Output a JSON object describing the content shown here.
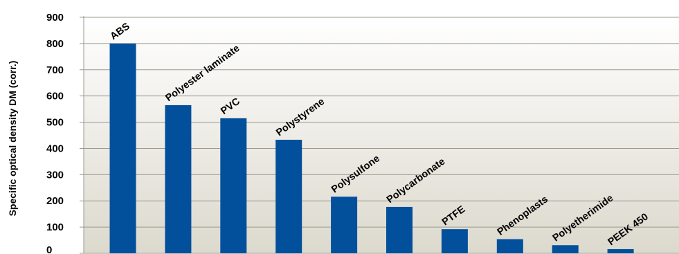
{
  "chart_data": {
    "type": "bar",
    "title": "",
    "xlabel": "",
    "ylabel": "Specific optical density DM (corr.)",
    "categories": [
      "ABS",
      "Polyester laminate",
      "PVC",
      "Polystyrene",
      "Polysulfone",
      "Polycarbonate",
      "PTFE",
      "Phenoplasts",
      "Polyetherimide",
      "PEEK 450"
    ],
    "values": [
      800,
      565,
      515,
      433,
      216,
      177,
      92,
      54,
      31,
      16
    ],
    "ylim": [
      0,
      900
    ],
    "yticks": [
      0,
      100,
      200,
      300,
      400,
      500,
      600,
      700,
      800,
      900
    ],
    "grid": true,
    "legend": "none",
    "colors": {
      "bar": "#02509c",
      "grid": "#9a9a8e",
      "background_top": "#ffffff",
      "background_bottom": "#dcd9cd"
    }
  }
}
